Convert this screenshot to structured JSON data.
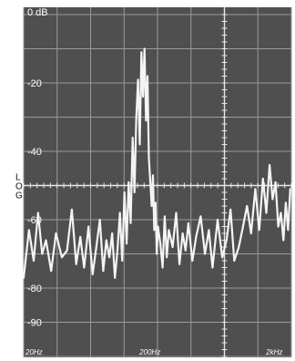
{
  "chart_data": {
    "type": "line",
    "y_tick_labels": [
      "0 dB",
      "-20",
      "-40",
      "-60",
      "-80",
      "-90"
    ],
    "y_tick_values": [
      0,
      -20,
      -40,
      -60,
      -80,
      -90
    ],
    "ylim": [
      -90,
      0
    ],
    "y_top_label": "0 dB",
    "side_label": [
      "L",
      "O",
      "G"
    ],
    "x_scale": "log",
    "x_tick_labels": [
      "20Hz",
      "200Hz",
      "2kHz"
    ],
    "x_tick_values": [
      20,
      200,
      2000
    ],
    "xlim": [
      20,
      2600
    ],
    "grid": true,
    "series": [
      {
        "x": [
          20,
          22,
          24,
          26,
          28,
          30,
          33,
          36,
          40,
          44,
          48,
          52,
          56,
          60,
          65,
          70,
          75,
          80,
          85,
          90,
          95,
          100,
          105,
          110,
          115,
          120,
          125,
          130,
          135,
          140,
          145,
          150,
          155,
          160,
          165,
          170,
          175,
          180,
          185,
          190,
          195,
          200,
          205,
          210,
          215,
          220,
          225,
          230,
          240,
          250,
          260,
          270,
          280,
          300,
          320,
          340,
          360,
          380,
          400,
          430,
          460,
          500,
          540,
          580,
          620,
          680,
          740,
          800,
          860,
          920,
          1000,
          1080,
          1160,
          1250,
          1350,
          1450,
          1550,
          1650,
          1750,
          1850,
          1950,
          2050,
          2150,
          2250,
          2350,
          2450,
          2550
        ],
        "y": [
          -77,
          -63,
          -72,
          -58,
          -70,
          -66,
          -75,
          -64,
          -71,
          -69,
          -57,
          -73,
          -65,
          -74,
          -62,
          -76,
          -68,
          -60,
          -75,
          -66,
          -71,
          -64,
          -77,
          -69,
          -58,
          -72,
          -52,
          -67,
          -49,
          -61,
          -36,
          -52,
          -30,
          -19,
          -38,
          -11,
          -24,
          -10,
          -31,
          -18,
          -42,
          -49,
          -56,
          -47,
          -63,
          -55,
          -70,
          -62,
          -67,
          -74,
          -59,
          -71,
          -63,
          -68,
          -58,
          -73,
          -64,
          -69,
          -61,
          -72,
          -65,
          -59,
          -70,
          -63,
          -74,
          -60,
          -71,
          -66,
          -57,
          -72,
          -68,
          -62,
          -56,
          -64,
          -51,
          -63,
          -48,
          -58,
          -44,
          -54,
          -49,
          -62,
          -58,
          -66,
          -55,
          -63,
          -51
        ]
      }
    ]
  }
}
